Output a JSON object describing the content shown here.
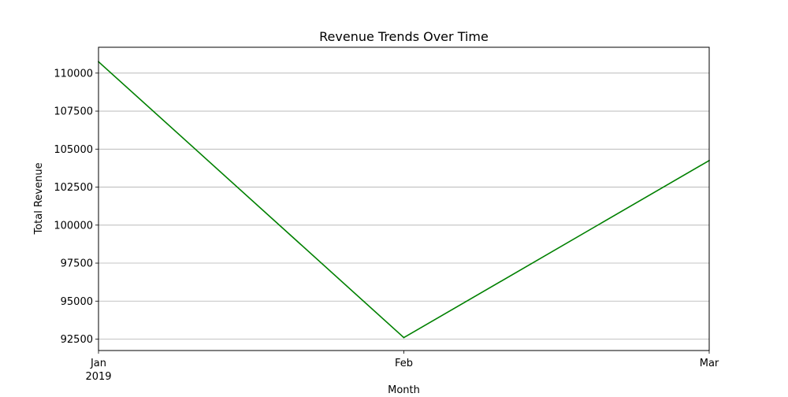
{
  "chart_data": {
    "type": "line",
    "title": "Revenue Trends Over Time",
    "xlabel": "Month",
    "ylabel": "Total Revenue",
    "x": [
      "2019-01",
      "2019-02",
      "2019-03"
    ],
    "x_tick_labels": [
      "Jan",
      "Feb",
      "Mar"
    ],
    "x_tick_sublabels": [
      "2019",
      "",
      ""
    ],
    "y_ticks": [
      92500,
      95000,
      97500,
      100000,
      102500,
      105000,
      107500,
      110000
    ],
    "y_tick_labels": [
      "92500",
      "95000",
      "97500",
      "100000",
      "102500",
      "105000",
      "107500",
      "110000"
    ],
    "ylim": [
      91750,
      111700
    ],
    "series": [
      {
        "values": [
          110750,
          92600,
          104250
        ],
        "color": "#008000"
      }
    ],
    "grid": "horizontal",
    "legend": "none"
  }
}
